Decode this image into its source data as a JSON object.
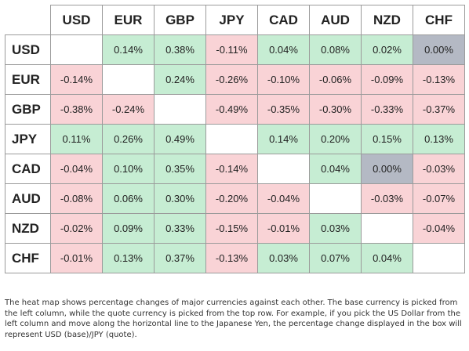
{
  "colors": {
    "positive": "#c6edd3",
    "negative": "#f9d3d6",
    "neutral": "#b4b9c4",
    "diagonal": "#ffffff",
    "grid": "#9b9b9b"
  },
  "heatmap": {
    "columns": [
      "USD",
      "EUR",
      "GBP",
      "JPY",
      "CAD",
      "AUD",
      "NZD",
      "CHF"
    ],
    "rows": [
      {
        "currency": "USD",
        "cells": [
          "",
          "0.14%",
          "0.38%",
          "-0.11%",
          "0.04%",
          "0.08%",
          "0.02%",
          "0.00%"
        ]
      },
      {
        "currency": "EUR",
        "cells": [
          "-0.14%",
          "",
          "0.24%",
          "-0.26%",
          "-0.10%",
          "-0.06%",
          "-0.09%",
          "-0.13%"
        ]
      },
      {
        "currency": "GBP",
        "cells": [
          "-0.38%",
          "-0.24%",
          "",
          "-0.49%",
          "-0.35%",
          "-0.30%",
          "-0.33%",
          "-0.37%"
        ]
      },
      {
        "currency": "JPY",
        "cells": [
          "0.11%",
          "0.26%",
          "0.49%",
          "",
          "0.14%",
          "0.20%",
          "0.15%",
          "0.13%"
        ]
      },
      {
        "currency": "CAD",
        "cells": [
          "-0.04%",
          "0.10%",
          "0.35%",
          "-0.14%",
          "",
          "0.04%",
          "0.00%",
          "-0.03%"
        ]
      },
      {
        "currency": "AUD",
        "cells": [
          "-0.08%",
          "0.06%",
          "0.30%",
          "-0.20%",
          "-0.04%",
          "",
          "-0.03%",
          "-0.07%"
        ]
      },
      {
        "currency": "NZD",
        "cells": [
          "-0.02%",
          "0.09%",
          "0.33%",
          "-0.15%",
          "-0.01%",
          "0.03%",
          "",
          "-0.04%"
        ]
      },
      {
        "currency": "CHF",
        "cells": [
          "-0.01%",
          "0.13%",
          "0.37%",
          "-0.13%",
          "0.03%",
          "0.07%",
          "0.04%",
          ""
        ]
      }
    ]
  },
  "caption": "The heat map shows percentage changes of major currencies against each other. The base currency is picked from the left column, while the quote currency is picked from the top row. For example, if you pick the US Dollar from the left column and move along the horizontal line to the Japanese Yen, the percentage change displayed in the box will represent USD (base)/JPY (quote)."
}
